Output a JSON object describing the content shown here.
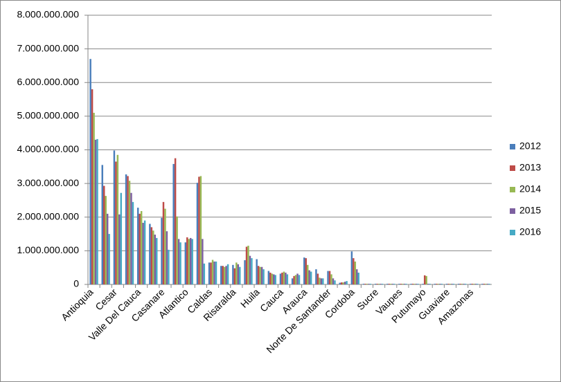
{
  "chart_data": {
    "type": "bar",
    "categories": [
      "Antioquia",
      null,
      "Cesar",
      null,
      "Valle Del Cauca",
      null,
      "Casanare",
      null,
      "Atlantico",
      null,
      "Caldas",
      null,
      "Risaralda",
      null,
      "Huila",
      null,
      "Cauca",
      null,
      "Arauca",
      null,
      "Norte De Santander",
      null,
      "Cordoba",
      null,
      "Sucre",
      null,
      "Vaupes",
      null,
      "Putumayo",
      null,
      "Guaviare",
      null,
      "Amazonas",
      null
    ],
    "series": [
      {
        "name": "2012",
        "color": "#4a7ebb",
        "values": [
          6700000000,
          3550000000,
          3980000000,
          3270000000,
          2280000000,
          1800000000,
          1980000000,
          3580000000,
          1250000000,
          3020000000,
          650000000,
          550000000,
          580000000,
          720000000,
          750000000,
          400000000,
          320000000,
          180000000,
          800000000,
          450000000,
          400000000,
          50000000,
          980000000,
          20000000,
          20000000,
          20000000,
          20000000,
          20000000,
          20000000,
          20000000,
          20000000,
          20000000,
          20000000,
          20000000
        ]
      },
      {
        "name": "2013",
        "color": "#be4b48",
        "values": [
          5800000000,
          2930000000,
          3650000000,
          3220000000,
          2100000000,
          1700000000,
          2450000000,
          3750000000,
          1400000000,
          3200000000,
          650000000,
          550000000,
          480000000,
          1120000000,
          550000000,
          350000000,
          350000000,
          250000000,
          780000000,
          320000000,
          400000000,
          60000000,
          780000000,
          20000000,
          20000000,
          20000000,
          20000000,
          20000000,
          270000000,
          20000000,
          20000000,
          20000000,
          20000000,
          20000000
        ]
      },
      {
        "name": "2014",
        "color": "#98b954",
        "values": [
          5100000000,
          2630000000,
          3850000000,
          3080000000,
          2180000000,
          1600000000,
          2250000000,
          2020000000,
          1350000000,
          3220000000,
          730000000,
          520000000,
          650000000,
          1150000000,
          520000000,
          320000000,
          380000000,
          280000000,
          580000000,
          200000000,
          300000000,
          60000000,
          680000000,
          20000000,
          20000000,
          20000000,
          20000000,
          20000000,
          250000000,
          20000000,
          20000000,
          20000000,
          20000000,
          20000000
        ]
      },
      {
        "name": "2015",
        "color": "#7d60a0",
        "values": [
          4300000000,
          2100000000,
          2080000000,
          2720000000,
          1830000000,
          1480000000,
          1580000000,
          1350000000,
          1380000000,
          1350000000,
          680000000,
          550000000,
          600000000,
          850000000,
          520000000,
          300000000,
          350000000,
          320000000,
          420000000,
          180000000,
          180000000,
          80000000,
          450000000,
          20000000,
          20000000,
          20000000,
          20000000,
          20000000,
          20000000,
          20000000,
          20000000,
          20000000,
          20000000,
          20000000
        ]
      },
      {
        "name": "2016",
        "color": "#46aac5",
        "values": [
          4320000000,
          1500000000,
          2720000000,
          2450000000,
          1900000000,
          1380000000,
          1030000000,
          1250000000,
          1350000000,
          620000000,
          680000000,
          600000000,
          520000000,
          780000000,
          450000000,
          280000000,
          300000000,
          280000000,
          380000000,
          180000000,
          120000000,
          100000000,
          350000000,
          20000000,
          20000000,
          20000000,
          20000000,
          20000000,
          20000000,
          20000000,
          20000000,
          20000000,
          20000000,
          20000000
        ]
      }
    ],
    "ylim": [
      0,
      8000000000
    ],
    "yticks": [
      {
        "value": 0,
        "label": "0"
      },
      {
        "value": 1000000000,
        "label": "1.000.000.000"
      },
      {
        "value": 2000000000,
        "label": "2.000.000.000"
      },
      {
        "value": 3000000000,
        "label": "3.000.000.000"
      },
      {
        "value": 4000000000,
        "label": "4.000.000.000"
      },
      {
        "value": 5000000000,
        "label": "5.000.000.000"
      },
      {
        "value": 6000000000,
        "label": "6.000.000.000"
      },
      {
        "value": 7000000000,
        "label": "7.000.000.000"
      },
      {
        "value": 8000000000,
        "label": "8.000.000.000"
      }
    ],
    "grid": true,
    "legend": "right"
  }
}
